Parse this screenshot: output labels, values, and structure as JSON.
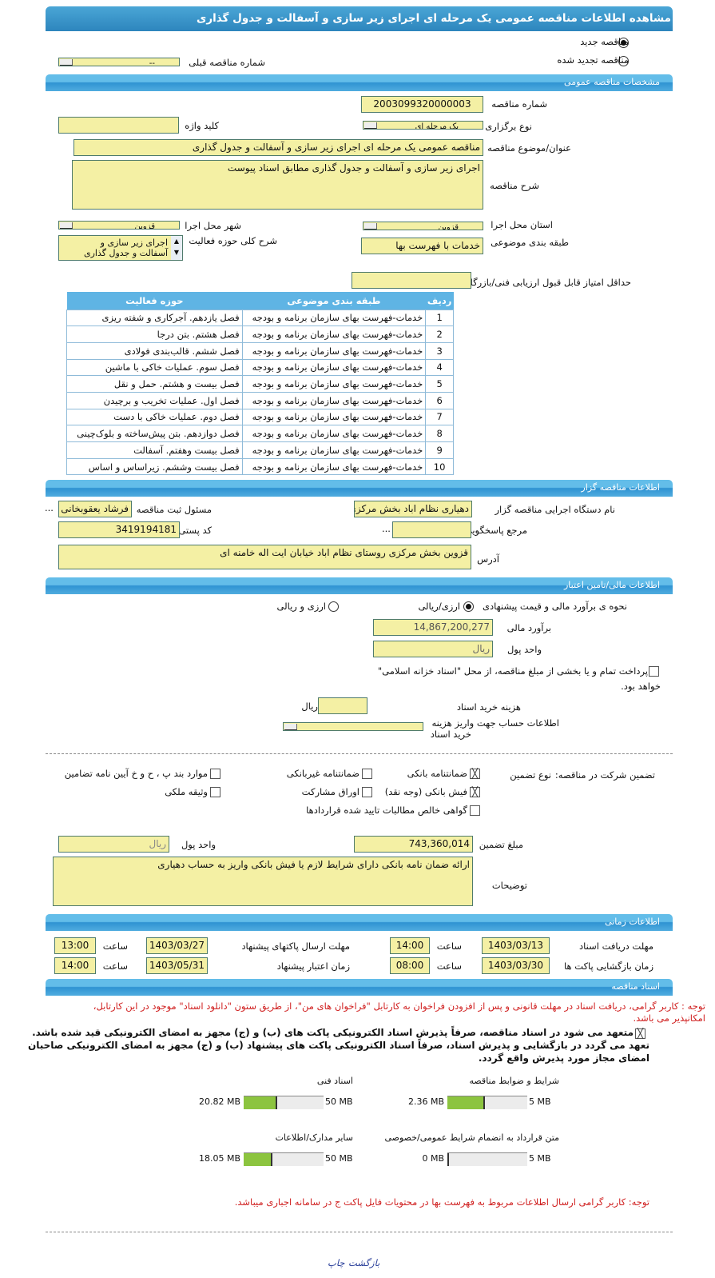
{
  "title": "مشاهده اطلاعات مناقصه عمومی یک مرحله ای اجرای زیر سازی و آسفالت و جدول گذاری",
  "tender_type": {
    "new": "مناقصه جدید",
    "renewed": "مناقصه تجدید شده",
    "selected": "new"
  },
  "previous_tender": {
    "label": "شماره مناقصه قبلی",
    "value": "--"
  },
  "general": {
    "section": "مشخصات مناقصه عمومی",
    "number_label": "شماره مناقصه",
    "number": "2003099320000003",
    "holding_type_label": "نوع برگزاری",
    "holding_type": "یک مرحله ای",
    "keyword_label": "کلید واژه",
    "keyword": "",
    "subject_label": "عنوان/موضوع مناقصه",
    "subject": "مناقصه عمومی یک مرحله ای اجرای  زیر  سازی  و  آسفالت  و جدول  گذاری",
    "description_label": "شرح مناقصه",
    "description": "اجرای  زیر  سازی  و  آسفالت  و جدول  گذاری  مطابق  اسناد  پیوست",
    "province_label": "استان محل اجرا",
    "province": "قزوین",
    "city_label": "شهر محل اجرا",
    "city": "قزوین",
    "category_label": "طبقه بندی موضوعی",
    "category": "خدمات با فهرست بها",
    "activity_label": "شرح کلی حوزه فعالیت",
    "activity_line1": "اجرای  زیر  سازی  و",
    "activity_line2": "آسفالت  و جدول  گذاری",
    "min_score_label": "حداقل امتیاز قابل قبول ارزیابی فنی/بازرگانی",
    "min_score": ""
  },
  "activity_table": {
    "headers": [
      "ردیف",
      "طبقه بندی موضوعی",
      "حوزه فعالیت"
    ],
    "rows": [
      [
        "1",
        "خدمات-فهرست بهای سازمان برنامه و بودجه",
        "فصل یازدهم. آجرکاری و شفته ریزی"
      ],
      [
        "2",
        "خدمات-فهرست بهای سازمان برنامه و بودجه",
        "فصل هشتم. بتن درجا"
      ],
      [
        "3",
        "خدمات-فهرست بهای سازمان برنامه و بودجه",
        "فصل ششم. قالب‌بندی فولادی"
      ],
      [
        "4",
        "خدمات-فهرست بهای سازمان برنامه و بودجه",
        "فصل سوم. عملیات خاکی با ماشین"
      ],
      [
        "5",
        "خدمات-فهرست بهای سازمان برنامه و بودجه",
        "فصل بیست و هشتم. حمل و نقل"
      ],
      [
        "6",
        "خدمات-فهرست بهای سازمان برنامه و بودجه",
        "فصل اول. عملیات تخریب و برچیدن"
      ],
      [
        "7",
        "خدمات-فهرست بهای سازمان برنامه و بودجه",
        "فصل دوم. عملیات خاکی با دست"
      ],
      [
        "8",
        "خدمات-فهرست بهای سازمان برنامه و بودجه",
        "فصل دوازدهم. بتن پیش‌ساخته و بلوک‌چینی"
      ],
      [
        "9",
        "خدمات-فهرست بهای سازمان برنامه و بودجه",
        "فصل بیست وهفتم. آسفالت"
      ],
      [
        "10",
        "خدمات-فهرست بهای سازمان برنامه و بودجه",
        "فصل بیست وششم. زیراساس و اساس"
      ]
    ]
  },
  "organizer": {
    "section": "اطلاعات مناقصه گزار",
    "org_label": "نام دستگاه اجرایی مناقصه گزار",
    "org": "دهیاری نظام اباد بخش مرکزی",
    "registrar_label": "مسئول ثبت مناقصه",
    "registrar": "فرشاد یعقوبخانی غیاثوند",
    "more": "...",
    "reference_label": "مرجع پاسخگویی",
    "reference": "...",
    "postal_label": "کد پستی",
    "postal": "3419194181",
    "address_label": "آدرس",
    "address": "قزوین بخش مرکزی روستای نظام اباد خیابان ایت اله خامنه ای"
  },
  "finance": {
    "section": "اطلاعات مالی/تامین اعتبار",
    "method_label": "نحوه ی برآورد مالی و قیمت پیشنهادی",
    "opt1": "ارزی/ریالی",
    "opt2": "ارزی و ریالی",
    "selected": "opt1",
    "estimate_label": "برآورد مالی",
    "estimate": "14,867,200,277",
    "currency_label": "واحد پول",
    "currency": "ریال",
    "treasury_text": "پرداخت تمام و یا بخشی از مبلغ مناقصه، از محل \"اسناد خزانه اسلامی\"",
    "treasury_text2": "خواهد بود.",
    "treasury_checked": false,
    "doc_cost_label": "هزینه خرید اسناد",
    "doc_cost": "",
    "doc_cost_unit": "ریال",
    "account_label1": "اطلاعات حساب جهت واریز هزینه",
    "account_label2": "خرید اسناد",
    "account": ""
  },
  "guarantee": {
    "label": "تضمین شرکت در مناقصه:",
    "type_label": "نوع تضمین",
    "options": [
      {
        "label": "ضمانتنامه بانکی",
        "checked": true
      },
      {
        "label": "ضمانتنامه غیربانکی",
        "checked": false
      },
      {
        "label": "موارد بند پ ، ح و خ آیین نامه تضامین",
        "checked": false
      },
      {
        "label": "فیش بانکی (وجه نقد)",
        "checked": true
      },
      {
        "label": "اوراق مشارکت",
        "checked": false
      },
      {
        "label": "وثیقه ملکی",
        "checked": false
      },
      {
        "label": "گواهی خالص مطالبات تایید شده قراردادها",
        "checked": false
      }
    ],
    "amount_label": "مبلغ تضمین",
    "amount": "743,360,014",
    "currency_label": "واحد پول",
    "currency": "ریال",
    "notes_label": "توضیحات",
    "notes": "ارائه ضمان نامه بانکی دارای شرایط لازم یا فیش بانکی واریز به حساب دهیاری"
  },
  "timing": {
    "section": "اطلاعات زمانی",
    "time_label": "ساعت",
    "doc_deadline_label": "مهلت دریافت اسناد",
    "doc_deadline_date": "1403/03/13",
    "doc_deadline_time": "14:00",
    "submit_deadline_label": "مهلت ارسال پاکتهای پیشنهاد",
    "submit_deadline_date": "1403/03/27",
    "submit_deadline_time": "13:00",
    "opening_label": "زمان بازگشایی پاکت ها",
    "opening_date": "1403/03/30",
    "opening_time": "08:00",
    "validity_label": "زمان اعتبار پیشنهاد",
    "validity_date": "1403/05/31",
    "validity_time": "14:00"
  },
  "documents": {
    "section": "اسناد مناقصه",
    "notice1": "توجه : کاربر گرامی، دریافت اسناد در مهلت قانونی و پس از افزودن فراخوان به کارتابل \"فراخوان های من\"، از طریق ستون \"دانلود اسناد\" موجود در این کارتابل،",
    "notice1b": "امکانپذیر می باشد.",
    "commit1": "متعهد می شود در اسناد مناقصه، صرفاً پذیرش اسناد الکترونیکی پاکت های (ب) و (ج) مجهز به امضای الکترونیکی قید شده باشد.",
    "commit2": "تعهد می گردد در بازگشایی و پذیرش اسناد، صرفاً اسناد الکترونیکی پاکت های پیشنهاد (ب) و (ج) مجهز به امضای الکترونیکی صاحبان",
    "commit3": "امضای مجاز مورد پذیرش واقع گردد.",
    "commit_checked": true,
    "files": [
      {
        "label": "شرایط و ضوابط مناقصه",
        "used": "2.36 MB",
        "max": "5 MB",
        "used_mb": 2.36,
        "max_mb": 5
      },
      {
        "label": "اسناد فنی",
        "used": "20.82 MB",
        "max": "50 MB",
        "used_mb": 20.82,
        "max_mb": 50
      },
      {
        "label": "متن قرارداد به انضمام شرایط عمومی/خصوصی",
        "used": "0 MB",
        "max": "5 MB",
        "used_mb": 0,
        "max_mb": 5
      },
      {
        "label": "سایر مدارک/اطلاعات",
        "used": "18.05 MB",
        "max": "50 MB",
        "used_mb": 18.05,
        "max_mb": 50
      }
    ],
    "footer_notice": "توجه: کاربر گرامی ارسال اطلاعات مربوط به فهرست بها در محتویات فایل پاکت ج در سامانه اجباری میباشد."
  },
  "actions": {
    "print": "چاپ",
    "back": "بازگشت"
  },
  "colors": {
    "field": "#f4f0a4",
    "section_bar": "#3a9ad6",
    "progress": "#8cc43f",
    "notice": "#d02020"
  }
}
